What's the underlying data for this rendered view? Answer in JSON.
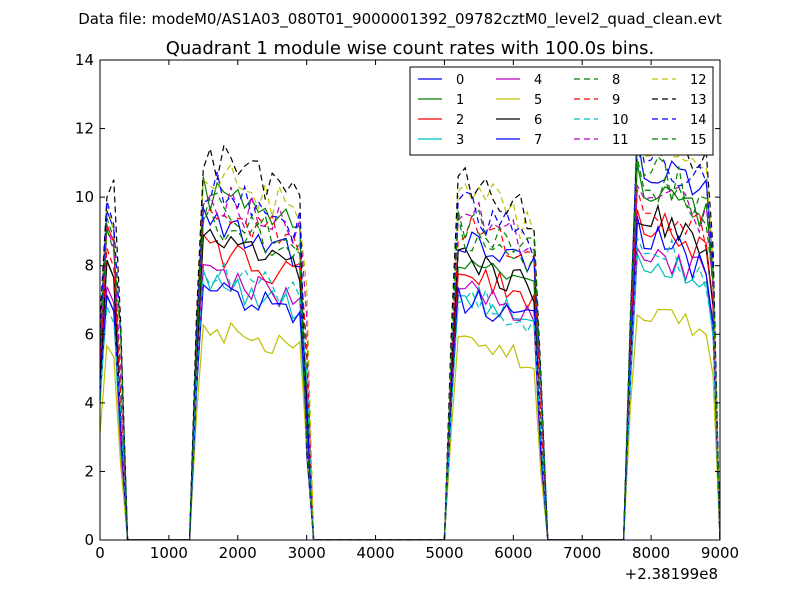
{
  "chart_data": {
    "type": "line",
    "suptitle": "Data file: modeM0/AS1A03_080T01_9000001392_09782cztM0_level2_quad_clean.evt",
    "title": "Quadrant 1 module wise count rates with 100.0s bins.",
    "xlabel": "",
    "ylabel": "",
    "x_offset_label": "+2.38199e8",
    "xlim": [
      0,
      9000
    ],
    "ylim": [
      0,
      14
    ],
    "x_ticks": [
      0,
      1000,
      2000,
      3000,
      4000,
      5000,
      6000,
      7000,
      8000,
      9000
    ],
    "y_ticks": [
      0,
      2,
      4,
      6,
      8,
      10,
      12,
      14
    ],
    "grid": false,
    "legend_position": "upper-right",
    "legend_columns": 4,
    "segments": [
      {
        "start": 0,
        "end": 250
      },
      {
        "start": 1360,
        "end": 2980
      },
      {
        "start": 5030,
        "end": 6360
      },
      {
        "start": 7700,
        "end": 8820
      }
    ],
    "series": [
      {
        "name": "0",
        "color": "#0000ff",
        "dash": "solid",
        "levels": [
          9.4,
          8.8,
          8.5,
          10.8
        ]
      },
      {
        "name": "1",
        "color": "#008000",
        "dash": "solid",
        "levels": [
          8.3,
          9.7,
          7.9,
          10.2
        ]
      },
      {
        "name": "2",
        "color": "#ff0000",
        "dash": "solid",
        "levels": [
          8.7,
          8.2,
          7.6,
          9.1
        ]
      },
      {
        "name": "3",
        "color": "#00bfbf",
        "dash": "solid",
        "levels": [
          7.0,
          7.3,
          6.9,
          8.0
        ]
      },
      {
        "name": "4",
        "color": "#bf00bf",
        "dash": "solid",
        "levels": [
          7.6,
          7.5,
          7.0,
          8.3
        ]
      },
      {
        "name": "5",
        "color": "#bfbf00",
        "dash": "solid",
        "levels": [
          5.4,
          5.9,
          5.6,
          6.5
        ]
      },
      {
        "name": "6",
        "color": "#000000",
        "dash": "solid",
        "levels": [
          8.1,
          8.4,
          7.9,
          9.3
        ]
      },
      {
        "name": "7",
        "color": "#0000ff",
        "dash": "solid",
        "levels": [
          7.4,
          7.1,
          6.8,
          8.6
        ]
      },
      {
        "name": "8",
        "color": "#008000",
        "dash": "dashed",
        "levels": [
          9.0,
          8.9,
          8.6,
          10.3
        ]
      },
      {
        "name": "9",
        "color": "#ff0000",
        "dash": "dashed",
        "levels": [
          8.5,
          9.3,
          8.8,
          9.6
        ]
      },
      {
        "name": "10",
        "color": "#00bfbf",
        "dash": "dashed",
        "levels": [
          7.1,
          7.6,
          6.9,
          8.4
        ]
      },
      {
        "name": "11",
        "color": "#bf00bf",
        "dash": "dashed",
        "levels": [
          8.8,
          9.6,
          9.2,
          10.0
        ]
      },
      {
        "name": "12",
        "color": "#bfbf00",
        "dash": "dashed",
        "levels": [
          9.8,
          10.4,
          9.9,
          11.2
        ]
      },
      {
        "name": "13",
        "color": "#000000",
        "dash": "dashed",
        "levels": [
          10.5,
          10.8,
          10.2,
          11.8
        ]
      },
      {
        "name": "14",
        "color": "#0000ff",
        "dash": "dashed",
        "levels": [
          9.6,
          9.9,
          9.4,
          11.0
        ]
      },
      {
        "name": "15",
        "color": "#008000",
        "dash": "dashed",
        "levels": [
          9.2,
          9.4,
          9.0,
          10.6
        ]
      }
    ]
  }
}
